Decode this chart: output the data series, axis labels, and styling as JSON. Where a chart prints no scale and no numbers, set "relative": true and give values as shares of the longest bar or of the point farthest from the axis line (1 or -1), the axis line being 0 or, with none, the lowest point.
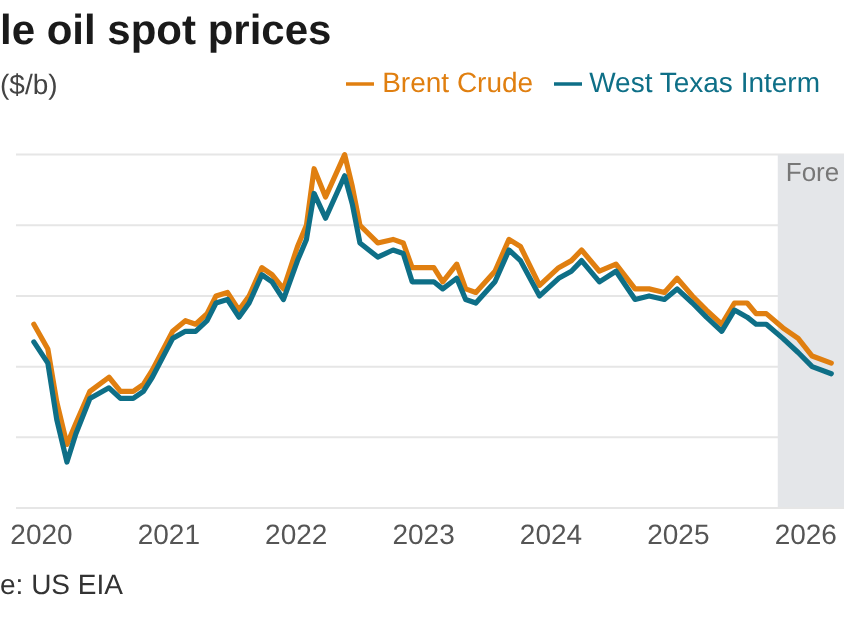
{
  "chart_data": {
    "type": "line",
    "title": "le oil spot prices",
    "ylabel": "($/b)",
    "relative": true,
    "x": [
      2019.94,
      2020.05,
      2020.12,
      2020.2,
      2020.27,
      2020.38,
      2020.53,
      2020.62,
      2020.72,
      2020.8,
      2020.87,
      2021.03,
      2021.13,
      2021.21,
      2021.3,
      2021.37,
      2021.46,
      2021.55,
      2021.63,
      2021.73,
      2021.81,
      2021.9,
      2022.01,
      2022.08,
      2022.14,
      2022.23,
      2022.38,
      2022.44,
      2022.5,
      2022.64,
      2022.76,
      2022.84,
      2022.91,
      2023.08,
      2023.15,
      2023.26,
      2023.33,
      2023.41,
      2023.56,
      2023.67,
      2023.76,
      2023.91,
      2024.06,
      2024.16,
      2024.24,
      2024.38,
      2024.51,
      2024.66,
      2024.77,
      2024.89,
      2024.99,
      2025.11,
      2025.22,
      2025.34,
      2025.44,
      2025.54,
      2025.61,
      2025.69,
      2025.82,
      2025.94,
      2026.05,
      2026.2
    ],
    "series": [
      {
        "name": "Brent Crude",
        "color": "#e07f10",
        "values": [
          0.52,
          0.45,
          0.3,
          0.18,
          0.24,
          0.33,
          0.37,
          0.33,
          0.33,
          0.35,
          0.39,
          0.5,
          0.53,
          0.52,
          0.55,
          0.6,
          0.61,
          0.56,
          0.6,
          0.68,
          0.66,
          0.62,
          0.74,
          0.8,
          0.96,
          0.88,
          1.0,
          0.91,
          0.8,
          0.75,
          0.76,
          0.75,
          0.68,
          0.68,
          0.64,
          0.69,
          0.62,
          0.61,
          0.67,
          0.76,
          0.74,
          0.63,
          0.68,
          0.7,
          0.73,
          0.67,
          0.69,
          0.62,
          0.62,
          0.61,
          0.65,
          0.6,
          0.56,
          0.52,
          0.58,
          0.58,
          0.55,
          0.55,
          0.51,
          0.48,
          0.43,
          0.41
        ]
      },
      {
        "name": "West Texas Interm",
        "color": "#0e6f87",
        "values": [
          0.47,
          0.41,
          0.25,
          0.13,
          0.21,
          0.31,
          0.34,
          0.31,
          0.31,
          0.33,
          0.37,
          0.48,
          0.5,
          0.5,
          0.53,
          0.58,
          0.59,
          0.54,
          0.58,
          0.66,
          0.64,
          0.59,
          0.7,
          0.76,
          0.89,
          0.82,
          0.94,
          0.86,
          0.75,
          0.71,
          0.73,
          0.72,
          0.64,
          0.64,
          0.62,
          0.65,
          0.59,
          0.58,
          0.64,
          0.73,
          0.7,
          0.6,
          0.65,
          0.67,
          0.7,
          0.64,
          0.67,
          0.59,
          0.6,
          0.59,
          0.62,
          0.58,
          0.54,
          0.5,
          0.56,
          0.54,
          0.52,
          0.52,
          0.48,
          0.44,
          0.4,
          0.38
        ]
      }
    ],
    "xlim": [
      2019.8,
      2026.3
    ],
    "xticks": [
      2020,
      2021,
      2022,
      2023,
      2024,
      2025,
      2026
    ],
    "bands": [
      {
        "axis": "x",
        "from": 2025.78,
        "to": 2026.3,
        "label": "Fore",
        "color": "#e4e6e9"
      }
    ],
    "annotations": [
      "e: US EIA"
    ],
    "grid": "y",
    "legend": "top right",
    "marker": "none",
    "line_style": "solid"
  }
}
